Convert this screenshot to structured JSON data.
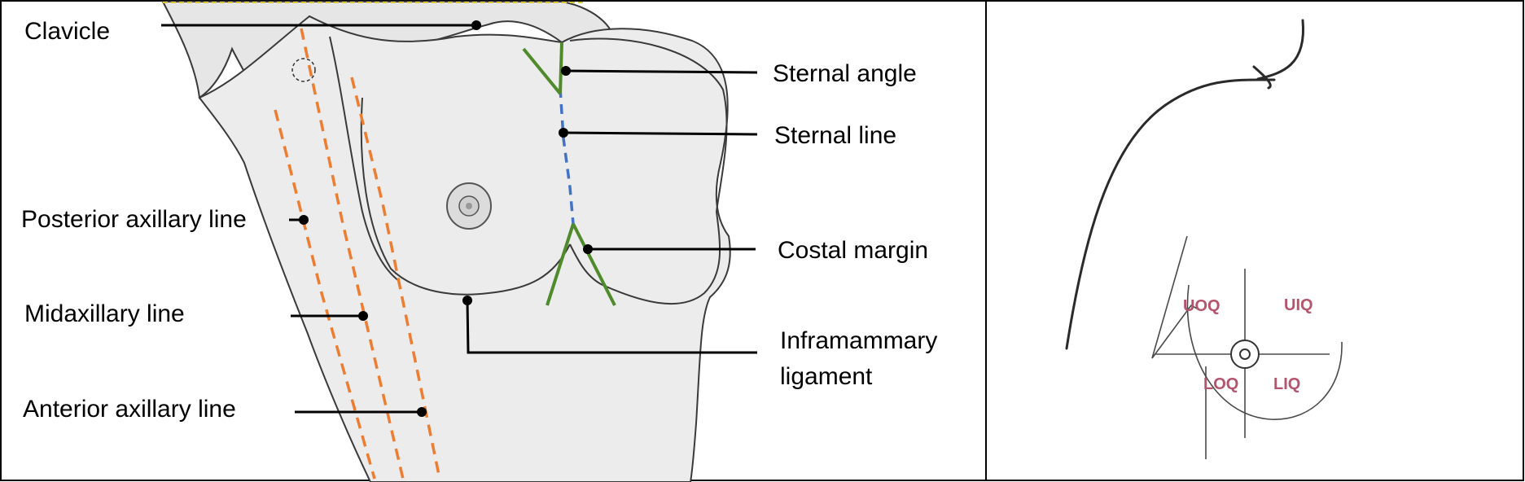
{
  "left_panel": {
    "labels": {
      "clavicle": "Clavicle",
      "sternal_angle": "Sternal angle",
      "sternal_line": "Sternal line",
      "posterior_axillary_line": "Posterior axillary line",
      "costal_margin": "Costal margin",
      "midaxillary_line": "Midaxillary line",
      "inframammary_line1": "Inframammary",
      "inframammary_line2": "ligament",
      "anterior_axillary_line": "Anterior axillary line"
    }
  },
  "right_panel": {
    "quadrants": {
      "upper_outer": "UOQ",
      "upper_inner": "UIQ",
      "lower_outer": "LOQ",
      "lower_inner": "LIQ"
    }
  },
  "colors": {
    "axillary_lines": "#ed7d31",
    "sternal_line": "#4472c4",
    "costal_and_sternal_angle": "#4f8a2b",
    "quadrant_text": "#b5546d",
    "body_fill": "#efefef"
  }
}
